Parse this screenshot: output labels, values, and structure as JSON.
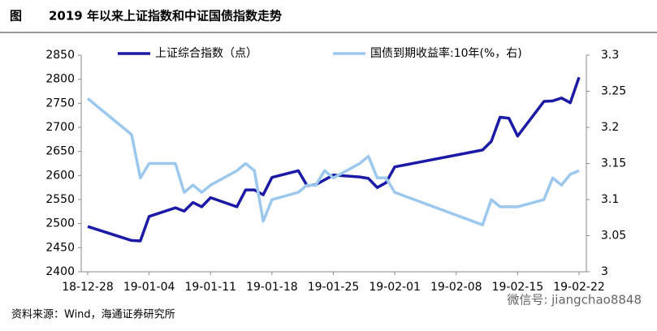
{
  "figure_label": "图",
  "chart_data": {
    "type": "line",
    "title": "2019 年以来上证指数和中证国债指数走势",
    "x": [
      "18-12-28",
      "19-01-02",
      "19-01-03",
      "19-01-04",
      "19-01-07",
      "19-01-08",
      "19-01-09",
      "19-01-10",
      "19-01-11",
      "19-01-14",
      "19-01-15",
      "19-01-16",
      "19-01-17",
      "19-01-18",
      "19-01-21",
      "19-01-22",
      "19-01-23",
      "19-01-24",
      "19-01-25",
      "19-01-28",
      "19-01-29",
      "19-01-30",
      "19-01-31",
      "19-02-01",
      "19-02-11",
      "19-02-12",
      "19-02-13",
      "19-02-14",
      "19-02-15",
      "19-02-18",
      "19-02-19",
      "19-02-20",
      "19-02-21",
      "19-02-22"
    ],
    "series": [
      {
        "name": "上证综合指数（点）",
        "color": "#1a1aa6",
        "values": [
          2494,
          2465,
          2464,
          2515,
          2533,
          2526,
          2544,
          2535,
          2554,
          2535,
          2570,
          2570,
          2560,
          2596,
          2610,
          2579,
          2581,
          2591,
          2601,
          2597,
          2594,
          2575,
          2585,
          2618,
          2653,
          2671,
          2721,
          2719,
          2682,
          2754,
          2755,
          2761,
          2751,
          2804
        ]
      },
      {
        "name": "国债到期收益率:10年(%，右)",
        "color": "#9dc8ee",
        "axis": "y2",
        "values": [
          3.24,
          3.19,
          3.13,
          3.15,
          3.15,
          3.11,
          3.12,
          3.11,
          3.12,
          3.14,
          3.15,
          3.14,
          3.07,
          3.1,
          3.11,
          3.12,
          3.12,
          3.14,
          3.13,
          3.15,
          3.16,
          3.13,
          3.13,
          3.11,
          3.065,
          3.1,
          3.09,
          3.09,
          3.09,
          3.1,
          3.13,
          3.12,
          3.135,
          3.14
        ]
      }
    ],
    "xlim": [
      "18-12-28",
      "19-02-22"
    ],
    "xticks": [
      "18-12-28",
      "19-01-04",
      "19-01-11",
      "19-01-18",
      "19-01-25",
      "19-02-01",
      "19-02-08",
      "19-02-15",
      "19-02-22"
    ],
    "ylim": [
      2400,
      2850
    ],
    "yticks": [
      2400,
      2450,
      2500,
      2550,
      2600,
      2650,
      2700,
      2750,
      2800,
      2850
    ],
    "y2lim": [
      3,
      3.3
    ],
    "y2ticks": [
      3,
      3.05,
      3.1,
      3.15,
      3.2,
      3.25,
      3.3
    ],
    "legend": "top",
    "source": "资料来源：Wind，海通证券研究所",
    "watermark": "微信号: jiangchao8848"
  }
}
